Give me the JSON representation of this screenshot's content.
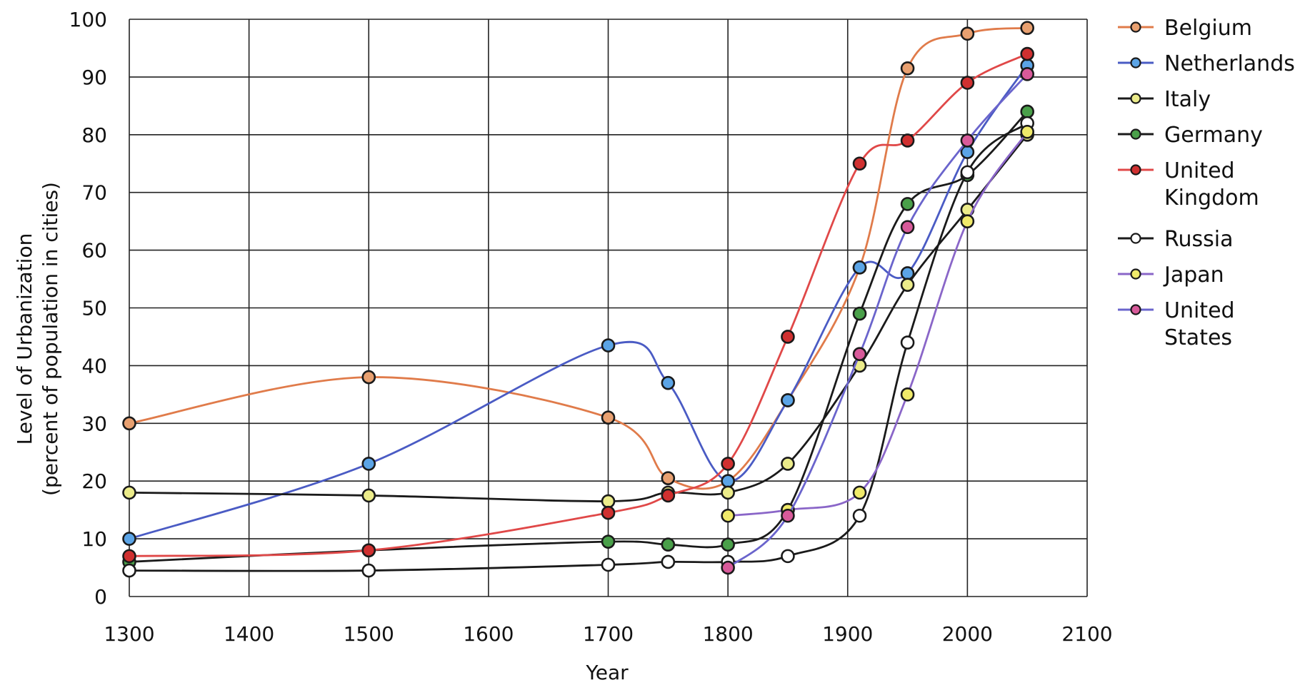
{
  "chart_data": {
    "type": "line",
    "xlabel": "Year",
    "ylabel": "Level of Urbanization",
    "ylabel_line2": "(percent of population in cities)",
    "xlim": [
      1300,
      2100
    ],
    "ylim": [
      0,
      100
    ],
    "x_ticks": [
      1300,
      1400,
      1500,
      1600,
      1700,
      1800,
      1900,
      2000,
      2100
    ],
    "y_ticks": [
      0,
      10,
      20,
      30,
      40,
      50,
      60,
      70,
      80,
      90,
      100
    ],
    "grid": true,
    "legend_position": "right",
    "series": [
      {
        "name": "Belgium",
        "line_color": "#e07b4a",
        "marker_color": "#e8a070",
        "points": [
          [
            1300,
            30
          ],
          [
            1500,
            38
          ],
          [
            1700,
            31
          ],
          [
            1750,
            20.5
          ],
          [
            1800,
            20
          ],
          [
            1850,
            34
          ],
          [
            1910,
            57
          ],
          [
            1950,
            91.5
          ],
          [
            2000,
            97.5
          ],
          [
            2050,
            98.5
          ]
        ]
      },
      {
        "name": "Netherlands",
        "line_color": "#4a5bc4",
        "marker_color": "#5ba4e6",
        "points": [
          [
            1300,
            10
          ],
          [
            1500,
            23
          ],
          [
            1700,
            43.5
          ],
          [
            1750,
            37
          ],
          [
            1800,
            20
          ],
          [
            1850,
            34
          ],
          [
            1910,
            57
          ],
          [
            1950,
            56
          ],
          [
            2000,
            77
          ],
          [
            2050,
            92
          ]
        ]
      },
      {
        "name": "Italy",
        "line_color": "#1a1a1a",
        "marker_color": "#ecec8a",
        "points": [
          [
            1300,
            18
          ],
          [
            1500,
            17.5
          ],
          [
            1700,
            16.5
          ],
          [
            1750,
            18
          ],
          [
            1800,
            18
          ],
          [
            1850,
            23
          ],
          [
            1910,
            40
          ],
          [
            1950,
            54
          ],
          [
            2000,
            67
          ],
          [
            2050,
            80
          ]
        ]
      },
      {
        "name": "Germany",
        "line_color": "#1a1a1a",
        "marker_color": "#4aa04a",
        "points": [
          [
            1300,
            6
          ],
          [
            1500,
            8
          ],
          [
            1700,
            9.5
          ],
          [
            1750,
            9
          ],
          [
            1800,
            9
          ],
          [
            1850,
            15
          ],
          [
            1910,
            49
          ],
          [
            1950,
            68
          ],
          [
            2000,
            73
          ],
          [
            2050,
            84
          ]
        ]
      },
      {
        "name": "United Kingdom",
        "line_color": "#e04848",
        "marker_color": "#d03030",
        "points": [
          [
            1300,
            7
          ],
          [
            1500,
            8
          ],
          [
            1700,
            14.5
          ],
          [
            1750,
            17.5
          ],
          [
            1800,
            23
          ],
          [
            1850,
            45
          ],
          [
            1910,
            75
          ],
          [
            1950,
            79
          ],
          [
            2000,
            89
          ],
          [
            2050,
            94
          ]
        ]
      },
      {
        "name": "Russia",
        "line_color": "#1a1a1a",
        "marker_color": "#ffffff",
        "points": [
          [
            1300,
            4.5
          ],
          [
            1500,
            4.5
          ],
          [
            1700,
            5.5
          ],
          [
            1750,
            6
          ],
          [
            1800,
            6
          ],
          [
            1850,
            7
          ],
          [
            1910,
            14
          ],
          [
            1950,
            44
          ],
          [
            2000,
            73.5
          ],
          [
            2050,
            82
          ]
        ]
      },
      {
        "name": "Japan",
        "line_color": "#8a66c8",
        "marker_color": "#f0ea6a",
        "points": [
          [
            1800,
            14
          ],
          [
            1850,
            15
          ],
          [
            1910,
            18
          ],
          [
            1950,
            35
          ],
          [
            2000,
            65
          ],
          [
            2050,
            80.5
          ]
        ]
      },
      {
        "name": "United States",
        "line_color": "#6a64cc",
        "marker_color": "#d85a9a",
        "points": [
          [
            1800,
            5
          ],
          [
            1850,
            14
          ],
          [
            1910,
            42
          ],
          [
            1950,
            64
          ],
          [
            2000,
            79
          ],
          [
            2050,
            90.5
          ]
        ]
      }
    ]
  },
  "legend": {
    "items": [
      {
        "lines": [
          "Belgium"
        ]
      },
      {
        "lines": [
          "Netherlands"
        ]
      },
      {
        "lines": [
          "Italy"
        ]
      },
      {
        "lines": [
          "Germany"
        ]
      },
      {
        "lines": [
          "United",
          "Kingdom"
        ]
      },
      {
        "lines": [
          "Russia"
        ]
      },
      {
        "lines": [
          "Japan"
        ]
      },
      {
        "lines": [
          "United",
          "States"
        ]
      }
    ]
  }
}
